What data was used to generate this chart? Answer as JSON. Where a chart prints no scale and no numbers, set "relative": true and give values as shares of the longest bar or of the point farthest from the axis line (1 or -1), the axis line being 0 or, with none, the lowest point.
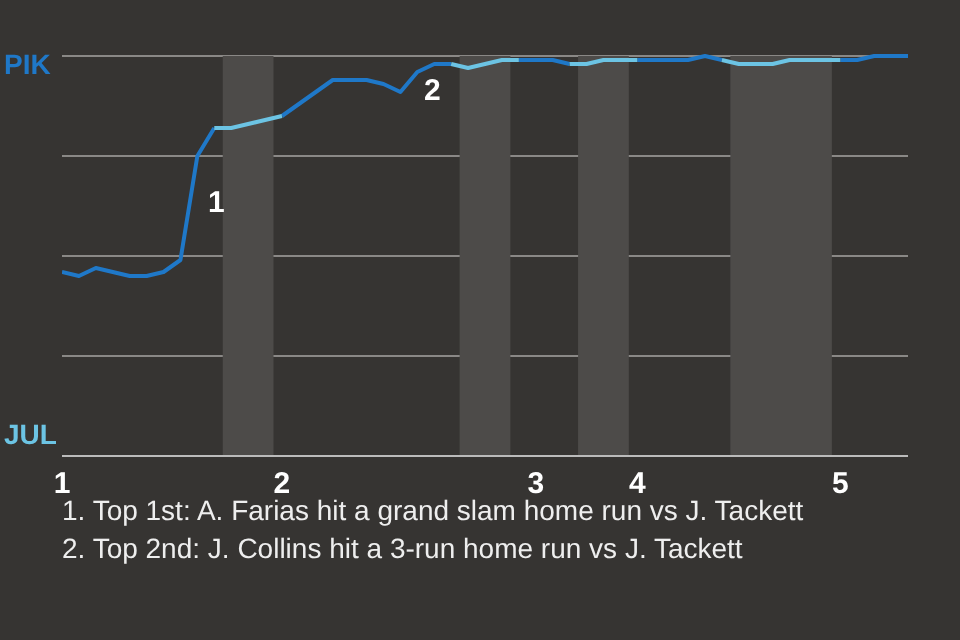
{
  "chart_data": {
    "type": "line",
    "relative": true,
    "categories": [
      "1",
      null,
      null,
      null,
      null,
      null,
      null,
      null,
      null,
      null,
      null,
      null,
      null,
      "2",
      null,
      null,
      null,
      null,
      null,
      null,
      null,
      null,
      null,
      null,
      null,
      null,
      null,
      null,
      "3",
      null,
      null,
      null,
      null,
      null,
      "4",
      null,
      null,
      null,
      null,
      null,
      null,
      null,
      null,
      null,
      null,
      null,
      "5",
      null,
      null,
      null,
      null
    ],
    "series": [
      {
        "name": "PIK",
        "color": "#1f78c8",
        "values": [
          0.46,
          0.45,
          0.47,
          0.46,
          0.45,
          0.45,
          0.46,
          0.49,
          0.75,
          0.82,
          null,
          null,
          null,
          0.85,
          0.88,
          0.91,
          0.94,
          0.94,
          0.94,
          0.93,
          0.91,
          0.96,
          0.98,
          0.98,
          null,
          null,
          null,
          0.99,
          0.99,
          0.99,
          0.98,
          null,
          null,
          null,
          0.99,
          0.99,
          0.99,
          0.99,
          1,
          0.99,
          null,
          null,
          null,
          null,
          null,
          null,
          0.99,
          0.99,
          1,
          1,
          1
        ]
      },
      {
        "name": "JUL",
        "color": "#6cc4e4",
        "values": [
          null,
          null,
          null,
          null,
          null,
          null,
          null,
          null,
          null,
          0.82,
          0.82,
          0.83,
          0.84,
          0.85,
          null,
          null,
          null,
          null,
          null,
          null,
          null,
          null,
          null,
          0.98,
          0.97,
          0.98,
          0.99,
          0.99,
          null,
          null,
          0.98,
          0.98,
          0.99,
          0.99,
          0.99,
          null,
          null,
          null,
          null,
          0.99,
          0.98,
          0.98,
          0.98,
          0.99,
          0.99,
          0.99,
          0.99,
          null,
          null,
          null,
          null
        ]
      }
    ],
    "legend": "left",
    "grid": "y",
    "annotations": [
      "1",
      "2",
      "1. Top 1st: A. Farias hit a grand slam home run vs J. Tackett",
      "2. Top 2nd: J. Collins hit a 3-run home run vs J. Tackett"
    ]
  }
}
